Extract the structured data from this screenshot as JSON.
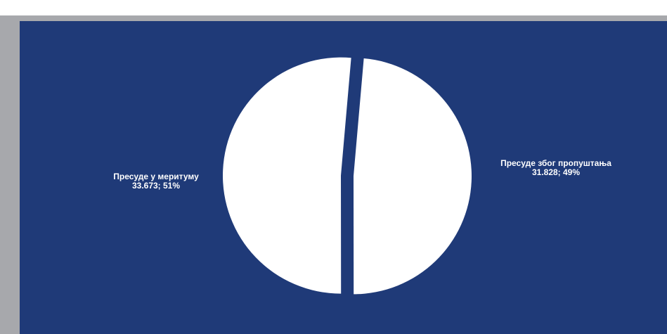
{
  "colors": {
    "frame": "#a7a8ac",
    "background": "#1f3a78",
    "slice": "#ffffff",
    "label": "#ffffff"
  },
  "chart_data": {
    "type": "pie",
    "title": "",
    "slices": [
      {
        "label": "Пресуде због пропуштања",
        "value": 31828,
        "value_label": "31.828; 49%",
        "percent": 49
      },
      {
        "label": "Пресуде у меритуму",
        "value": 33673,
        "value_label": "33.673; 51%",
        "percent": 51
      }
    ],
    "exploded": true,
    "legend": "none"
  }
}
